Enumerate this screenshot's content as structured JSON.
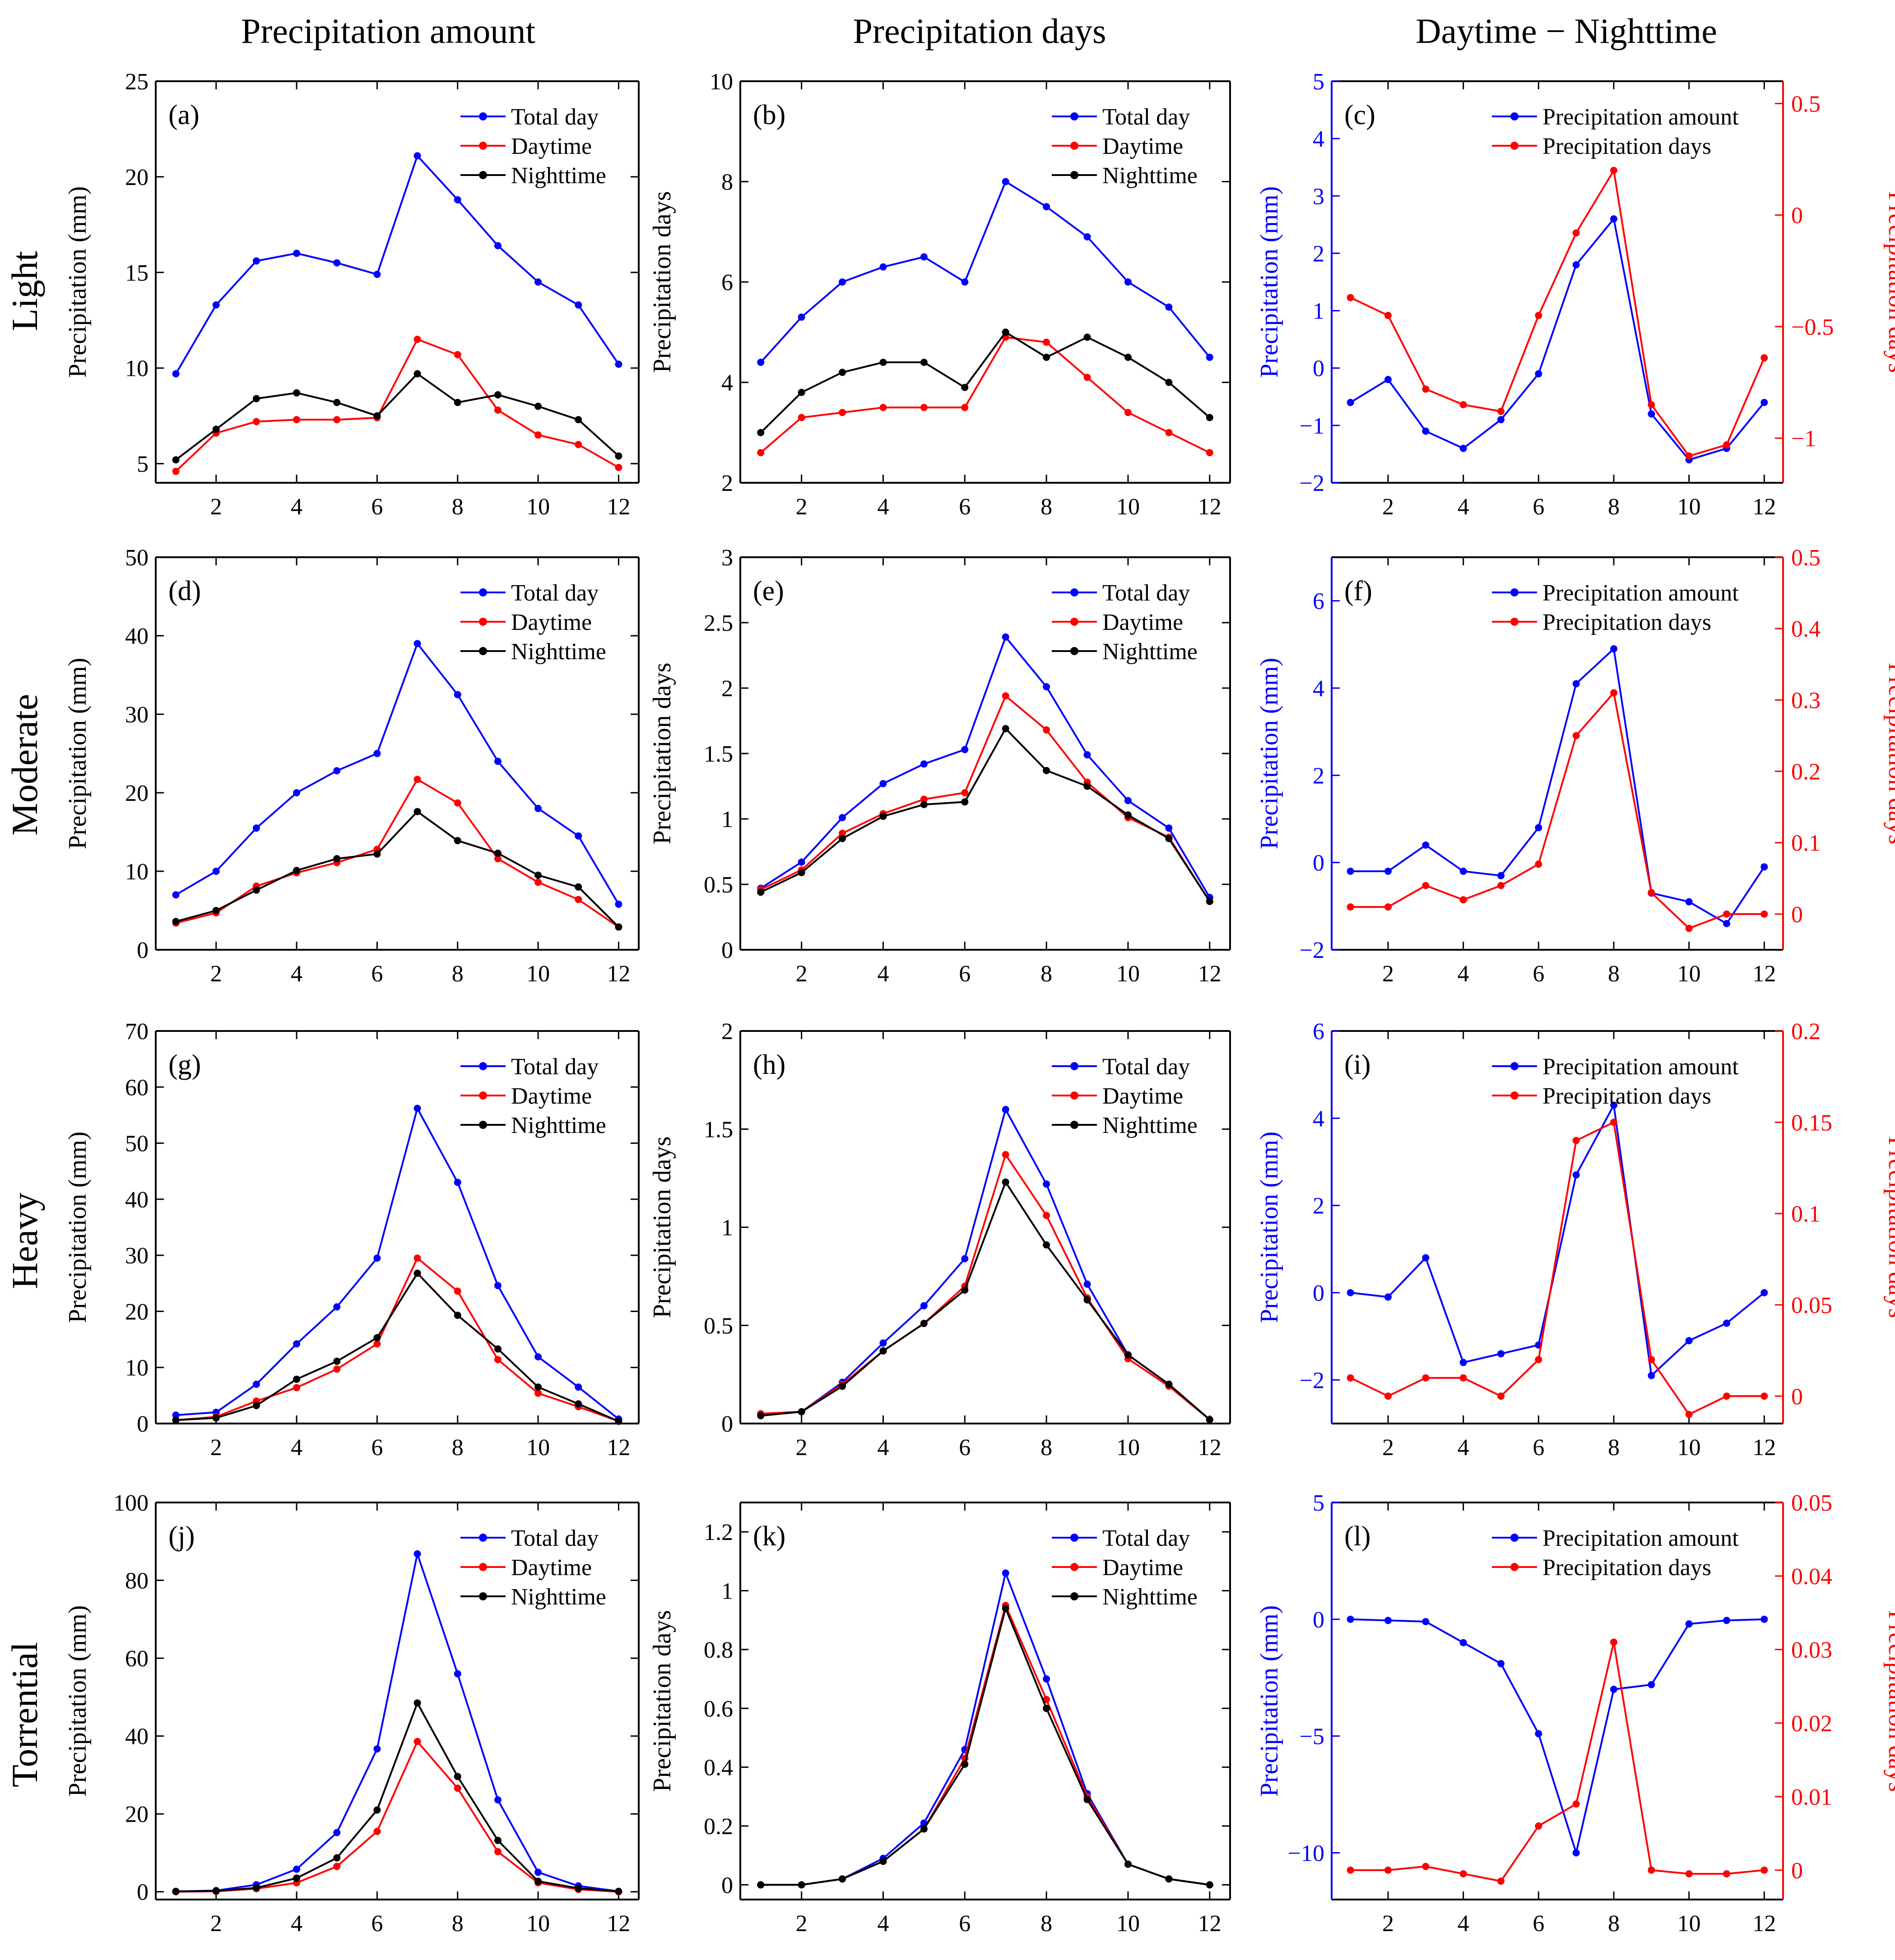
{
  "figure": {
    "column_titles": [
      "Precipitation amount",
      "Precipitation days",
      "Daytime − Nighttime"
    ],
    "row_titles": [
      "Light",
      "Moderate",
      "Heavy",
      "Torrential"
    ],
    "colors": {
      "total": "#0000ff",
      "day": "#ff0000",
      "night": "#000000",
      "axis": "#000000"
    }
  },
  "chart_data": [
    {
      "id": "a",
      "label": "(a)",
      "type": "line",
      "xlabel": "",
      "ylabel": "Precipitation (mm)",
      "xlim": [
        0.5,
        12.5
      ],
      "ylim": [
        4,
        25
      ],
      "yticks": [
        5,
        10,
        15,
        20,
        25
      ],
      "xticks": [
        2,
        4,
        6,
        8,
        10,
        12
      ],
      "categories": [
        1,
        2,
        3,
        4,
        5,
        6,
        7,
        8,
        9,
        10,
        11,
        12
      ],
      "series": [
        {
          "name": "Total day",
          "color": "#0000ff",
          "values": [
            9.7,
            13.3,
            15.6,
            16.0,
            15.5,
            14.9,
            21.1,
            18.8,
            16.4,
            14.5,
            13.3,
            10.2
          ]
        },
        {
          "name": "Daytime",
          "color": "#ff0000",
          "values": [
            4.6,
            6.6,
            7.2,
            7.3,
            7.3,
            7.4,
            11.5,
            10.7,
            7.8,
            6.5,
            6.0,
            4.8
          ]
        },
        {
          "name": "Nighttime",
          "color": "#000000",
          "values": [
            5.2,
            6.8,
            8.4,
            8.7,
            8.2,
            7.5,
            9.7,
            8.2,
            8.6,
            8.0,
            7.3,
            5.4
          ]
        }
      ]
    },
    {
      "id": "b",
      "label": "(b)",
      "type": "line",
      "xlabel": "",
      "ylabel": "Precipitation days",
      "xlim": [
        0.5,
        12.5
      ],
      "ylim": [
        2,
        10
      ],
      "yticks": [
        2,
        4,
        6,
        8,
        10
      ],
      "xticks": [
        2,
        4,
        6,
        8,
        10,
        12
      ],
      "categories": [
        1,
        2,
        3,
        4,
        5,
        6,
        7,
        8,
        9,
        10,
        11,
        12
      ],
      "series": [
        {
          "name": "Total day",
          "color": "#0000ff",
          "values": [
            4.4,
            5.3,
            6.0,
            6.3,
            6.5,
            6.0,
            8.0,
            7.5,
            6.9,
            6.0,
            5.5,
            4.5
          ]
        },
        {
          "name": "Daytime",
          "color": "#ff0000",
          "values": [
            2.6,
            3.3,
            3.4,
            3.5,
            3.5,
            3.5,
            4.9,
            4.8,
            4.1,
            3.4,
            3.0,
            2.6
          ]
        },
        {
          "name": "Nighttime",
          "color": "#000000",
          "values": [
            3.0,
            3.8,
            4.2,
            4.4,
            4.4,
            3.9,
            5.0,
            4.5,
            4.9,
            4.5,
            4.0,
            3.3
          ]
        }
      ]
    },
    {
      "id": "c",
      "label": "(c)",
      "type": "line",
      "dual_axis": true,
      "xlabel": "",
      "ylabel": "Precipitation (mm)",
      "ylabel_right": "Precipitation days",
      "xlim": [
        0.5,
        12.5
      ],
      "ylim": [
        -2,
        5
      ],
      "ylim_right": [
        -1.2,
        0.6
      ],
      "yticks": [
        -2,
        -1,
        0,
        1,
        2,
        3,
        4,
        5
      ],
      "yticks_right": [
        -1,
        -0.5,
        0,
        0.5
      ],
      "yticklabels_right": [
        "−1",
        "−0.5",
        "0",
        "0.5"
      ],
      "xticks": [
        2,
        4,
        6,
        8,
        10,
        12
      ],
      "categories": [
        1,
        2,
        3,
        4,
        5,
        6,
        7,
        8,
        9,
        10,
        11,
        12
      ],
      "series": [
        {
          "name": "Precipitation amount",
          "color": "#0000ff",
          "axis": "left",
          "values": [
            -0.6,
            -0.2,
            -1.1,
            -1.4,
            -0.9,
            -0.1,
            1.8,
            2.6,
            -0.8,
            -1.6,
            -1.4,
            -0.6
          ]
        },
        {
          "name": "Precipitation days",
          "color": "#ff0000",
          "axis": "right",
          "values": [
            -0.37,
            -0.45,
            -0.78,
            -0.85,
            -0.88,
            -0.45,
            -0.08,
            0.2,
            -0.85,
            -1.08,
            -1.03,
            -0.64
          ]
        }
      ]
    },
    {
      "id": "d",
      "label": "(d)",
      "type": "line",
      "xlabel": "",
      "ylabel": "Precipitation (mm)",
      "xlim": [
        0.5,
        12.5
      ],
      "ylim": [
        0,
        50
      ],
      "yticks": [
        0,
        10,
        20,
        30,
        40,
        50
      ],
      "xticks": [
        2,
        4,
        6,
        8,
        10,
        12
      ],
      "categories": [
        1,
        2,
        3,
        4,
        5,
        6,
        7,
        8,
        9,
        10,
        11,
        12
      ],
      "series": [
        {
          "name": "Total day",
          "color": "#0000ff",
          "values": [
            7.0,
            10.0,
            15.5,
            20.0,
            22.8,
            25.0,
            39.0,
            32.5,
            24.0,
            18.0,
            14.5,
            5.8
          ]
        },
        {
          "name": "Daytime",
          "color": "#ff0000",
          "values": [
            3.4,
            4.7,
            8.1,
            9.8,
            11.1,
            12.8,
            21.7,
            18.7,
            11.6,
            8.6,
            6.4,
            2.9
          ]
        },
        {
          "name": "Nighttime",
          "color": "#000000",
          "values": [
            3.6,
            5.0,
            7.6,
            10.1,
            11.6,
            12.2,
            17.6,
            13.9,
            12.3,
            9.5,
            8.0,
            2.9
          ]
        }
      ]
    },
    {
      "id": "e",
      "label": "(e)",
      "type": "line",
      "xlabel": "",
      "ylabel": "Precipitation days",
      "xlim": [
        0.5,
        12.5
      ],
      "ylim": [
        0,
        3
      ],
      "yticks": [
        0,
        0.5,
        1,
        1.5,
        2,
        2.5,
        3
      ],
      "xticks": [
        2,
        4,
        6,
        8,
        10,
        12
      ],
      "categories": [
        1,
        2,
        3,
        4,
        5,
        6,
        7,
        8,
        9,
        10,
        11,
        12
      ],
      "series": [
        {
          "name": "Total day",
          "color": "#0000ff",
          "values": [
            0.47,
            0.67,
            1.01,
            1.27,
            1.42,
            1.53,
            2.39,
            2.01,
            1.49,
            1.14,
            0.93,
            0.4
          ]
        },
        {
          "name": "Daytime",
          "color": "#ff0000",
          "values": [
            0.46,
            0.61,
            0.89,
            1.04,
            1.15,
            1.2,
            1.94,
            1.68,
            1.28,
            1.01,
            0.86,
            0.37
          ]
        },
        {
          "name": "Nighttime",
          "color": "#000000",
          "values": [
            0.44,
            0.59,
            0.85,
            1.02,
            1.11,
            1.13,
            1.69,
            1.37,
            1.25,
            1.03,
            0.85,
            0.37
          ]
        }
      ]
    },
    {
      "id": "f",
      "label": "(f)",
      "type": "line",
      "dual_axis": true,
      "xlabel": "",
      "ylabel": "Precipitation (mm)",
      "ylabel_right": "Precipitation days",
      "xlim": [
        0.5,
        12.5
      ],
      "ylim": [
        -2,
        7
      ],
      "ylim_right": [
        -0.05,
        0.5
      ],
      "yticks": [
        -2,
        0,
        2,
        4,
        6
      ],
      "yticks_right": [
        0,
        0.1,
        0.2,
        0.3,
        0.4,
        0.5
      ],
      "yticklabels_right": [
        "0",
        "0.1",
        "0.2",
        "0.3",
        "0.4",
        "0.5"
      ],
      "xticks": [
        2,
        4,
        6,
        8,
        10,
        12
      ],
      "categories": [
        1,
        2,
        3,
        4,
        5,
        6,
        7,
        8,
        9,
        10,
        11,
        12
      ],
      "series": [
        {
          "name": "Precipitation amount",
          "color": "#0000ff",
          "axis": "left",
          "values": [
            -0.2,
            -0.2,
            0.4,
            -0.2,
            -0.3,
            0.8,
            4.1,
            4.9,
            -0.7,
            -0.9,
            -1.4,
            -0.1
          ]
        },
        {
          "name": "Precipitation days",
          "color": "#ff0000",
          "axis": "right",
          "values": [
            0.01,
            0.01,
            0.04,
            0.02,
            0.04,
            0.07,
            0.25,
            0.31,
            0.03,
            -0.02,
            0.0,
            0.0
          ]
        }
      ]
    },
    {
      "id": "g",
      "label": "(g)",
      "type": "line",
      "xlabel": "",
      "ylabel": "Precipitation (mm)",
      "xlim": [
        0.5,
        12.5
      ],
      "ylim": [
        0,
        70
      ],
      "yticks": [
        0,
        10,
        20,
        30,
        40,
        50,
        60,
        70
      ],
      "xticks": [
        2,
        4,
        6,
        8,
        10,
        12
      ],
      "categories": [
        1,
        2,
        3,
        4,
        5,
        6,
        7,
        8,
        9,
        10,
        11,
        12
      ],
      "series": [
        {
          "name": "Total day",
          "color": "#0000ff",
          "values": [
            1.5,
            2.0,
            7.0,
            14.2,
            20.8,
            29.5,
            56.2,
            43.0,
            24.6,
            11.9,
            6.5,
            0.8
          ]
        },
        {
          "name": "Daytime",
          "color": "#ff0000",
          "values": [
            0.6,
            1.2,
            4.0,
            6.4,
            9.7,
            14.2,
            29.5,
            23.6,
            11.4,
            5.4,
            3.0,
            0.4
          ]
        },
        {
          "name": "Nighttime",
          "color": "#000000",
          "values": [
            0.6,
            1.0,
            3.2,
            7.9,
            11.1,
            15.3,
            26.8,
            19.3,
            13.3,
            6.5,
            3.5,
            0.4
          ]
        }
      ]
    },
    {
      "id": "h",
      "label": "(h)",
      "type": "line",
      "xlabel": "",
      "ylabel": "Precipitation days",
      "xlim": [
        0.5,
        12.5
      ],
      "ylim": [
        0,
        2
      ],
      "yticks": [
        0,
        0.5,
        1,
        1.5,
        2
      ],
      "xticks": [
        2,
        4,
        6,
        8,
        10,
        12
      ],
      "categories": [
        1,
        2,
        3,
        4,
        5,
        6,
        7,
        8,
        9,
        10,
        11,
        12
      ],
      "series": [
        {
          "name": "Total day",
          "color": "#0000ff",
          "values": [
            0.05,
            0.06,
            0.21,
            0.41,
            0.6,
            0.84,
            1.6,
            1.22,
            0.71,
            0.35,
            0.2,
            0.02
          ]
        },
        {
          "name": "Daytime",
          "color": "#ff0000",
          "values": [
            0.05,
            0.06,
            0.2,
            0.37,
            0.51,
            0.7,
            1.37,
            1.06,
            0.64,
            0.33,
            0.19,
            0.02
          ]
        },
        {
          "name": "Nighttime",
          "color": "#000000",
          "values": [
            0.04,
            0.06,
            0.19,
            0.37,
            0.51,
            0.68,
            1.23,
            0.91,
            0.63,
            0.35,
            0.2,
            0.02
          ]
        }
      ]
    },
    {
      "id": "i",
      "label": "(i)",
      "type": "line",
      "dual_axis": true,
      "xlabel": "",
      "ylabel": "Precipitation (mm)",
      "ylabel_right": "Precipitation days",
      "xlim": [
        0.5,
        12.5
      ],
      "ylim": [
        -3,
        6
      ],
      "ylim_right": [
        -0.015,
        0.2
      ],
      "yticks": [
        -2,
        0,
        2,
        4,
        6
      ],
      "yticks_right": [
        0,
        0.05,
        0.1,
        0.15,
        0.2
      ],
      "yticklabels_right": [
        "0",
        "0.05",
        "0.1",
        "0.15",
        "0.2"
      ],
      "xticks": [
        2,
        4,
        6,
        8,
        10,
        12
      ],
      "categories": [
        1,
        2,
        3,
        4,
        5,
        6,
        7,
        8,
        9,
        10,
        11,
        12
      ],
      "series": [
        {
          "name": "Precipitation amount",
          "color": "#0000ff",
          "axis": "left",
          "values": [
            0.0,
            -0.1,
            0.8,
            -1.6,
            -1.4,
            -1.2,
            2.7,
            4.3,
            -1.9,
            -1.1,
            -0.7,
            0.0
          ]
        },
        {
          "name": "Precipitation days",
          "color": "#ff0000",
          "axis": "right",
          "values": [
            0.01,
            0.0,
            0.01,
            0.01,
            0.0,
            0.02,
            0.14,
            0.15,
            0.02,
            -0.01,
            0.0,
            0.0
          ]
        }
      ]
    },
    {
      "id": "j",
      "label": "(j)",
      "type": "line",
      "xlabel": "",
      "ylabel": "Precipitation (mm)",
      "xlim": [
        0.5,
        12.5
      ],
      "ylim": [
        -2,
        100
      ],
      "yticks": [
        0,
        20,
        40,
        60,
        80,
        100
      ],
      "xticks": [
        2,
        4,
        6,
        8,
        10,
        12
      ],
      "categories": [
        1,
        2,
        3,
        4,
        5,
        6,
        7,
        8,
        9,
        10,
        11,
        12
      ],
      "series": [
        {
          "name": "Total day",
          "color": "#0000ff",
          "values": [
            0.1,
            0.3,
            1.8,
            5.8,
            15.2,
            36.7,
            86.8,
            56.0,
            23.6,
            5.0,
            1.5,
            0.1
          ]
        },
        {
          "name": "Daytime",
          "color": "#ff0000",
          "values": [
            0.0,
            0.1,
            0.8,
            2.3,
            6.5,
            15.5,
            38.6,
            26.6,
            10.3,
            2.3,
            0.6,
            0.0
          ]
        },
        {
          "name": "Nighttime",
          "color": "#000000",
          "values": [
            0.1,
            0.2,
            1.0,
            3.5,
            8.7,
            21.0,
            48.5,
            29.6,
            13.2,
            2.7,
            0.9,
            0.1
          ]
        }
      ]
    },
    {
      "id": "k",
      "label": "(k)",
      "type": "line",
      "xlabel": "",
      "ylabel": "Precipitation days",
      "xlim": [
        0.5,
        12.5
      ],
      "ylim": [
        -0.05,
        1.3
      ],
      "yticks": [
        0,
        0.2,
        0.4,
        0.6,
        0.8,
        1,
        1.2
      ],
      "xticks": [
        2,
        4,
        6,
        8,
        10,
        12
      ],
      "categories": [
        1,
        2,
        3,
        4,
        5,
        6,
        7,
        8,
        9,
        10,
        11,
        12
      ],
      "series": [
        {
          "name": "Total day",
          "color": "#0000ff",
          "values": [
            0.0,
            0.0,
            0.02,
            0.09,
            0.21,
            0.46,
            1.06,
            0.7,
            0.31,
            0.07,
            0.02,
            0.0
          ]
        },
        {
          "name": "Daytime",
          "color": "#ff0000",
          "values": [
            0.0,
            0.0,
            0.02,
            0.08,
            0.19,
            0.43,
            0.95,
            0.63,
            0.3,
            0.07,
            0.02,
            0.0
          ]
        },
        {
          "name": "Nighttime",
          "color": "#000000",
          "values": [
            0.0,
            0.0,
            0.02,
            0.08,
            0.19,
            0.41,
            0.94,
            0.6,
            0.29,
            0.07,
            0.02,
            0.0
          ]
        }
      ]
    },
    {
      "id": "l",
      "label": "(l)",
      "type": "line",
      "dual_axis": true,
      "xlabel": "",
      "ylabel": "Precipitation (mm)",
      "ylabel_right": "Precipitation days",
      "xlim": [
        0.5,
        12.5
      ],
      "ylim": [
        -12,
        5
      ],
      "ylim_right": [
        -0.004,
        0.05
      ],
      "yticks": [
        -10,
        -5,
        0,
        5
      ],
      "yticks_right": [
        0,
        0.01,
        0.02,
        0.03,
        0.04,
        0.05
      ],
      "yticklabels_right": [
        "0",
        "0.01",
        "0.02",
        "0.03",
        "0.04",
        "0.05"
      ],
      "xticks": [
        2,
        4,
        6,
        8,
        10,
        12
      ],
      "categories": [
        1,
        2,
        3,
        4,
        5,
        6,
        7,
        8,
        9,
        10,
        11,
        12
      ],
      "series": [
        {
          "name": "Precipitation amount",
          "color": "#0000ff",
          "axis": "left",
          "values": [
            0.0,
            -0.05,
            -0.1,
            -1.0,
            -1.9,
            -4.9,
            -10.0,
            -3.0,
            -2.8,
            -0.2,
            -0.05,
            0.0
          ]
        },
        {
          "name": "Precipitation days",
          "color": "#ff0000",
          "axis": "right",
          "values": [
            0.0,
            0.0,
            0.0005,
            -0.0005,
            -0.0015,
            0.006,
            0.009,
            0.031,
            0.0,
            -0.0005,
            -0.0005,
            0.0
          ]
        }
      ]
    }
  ]
}
